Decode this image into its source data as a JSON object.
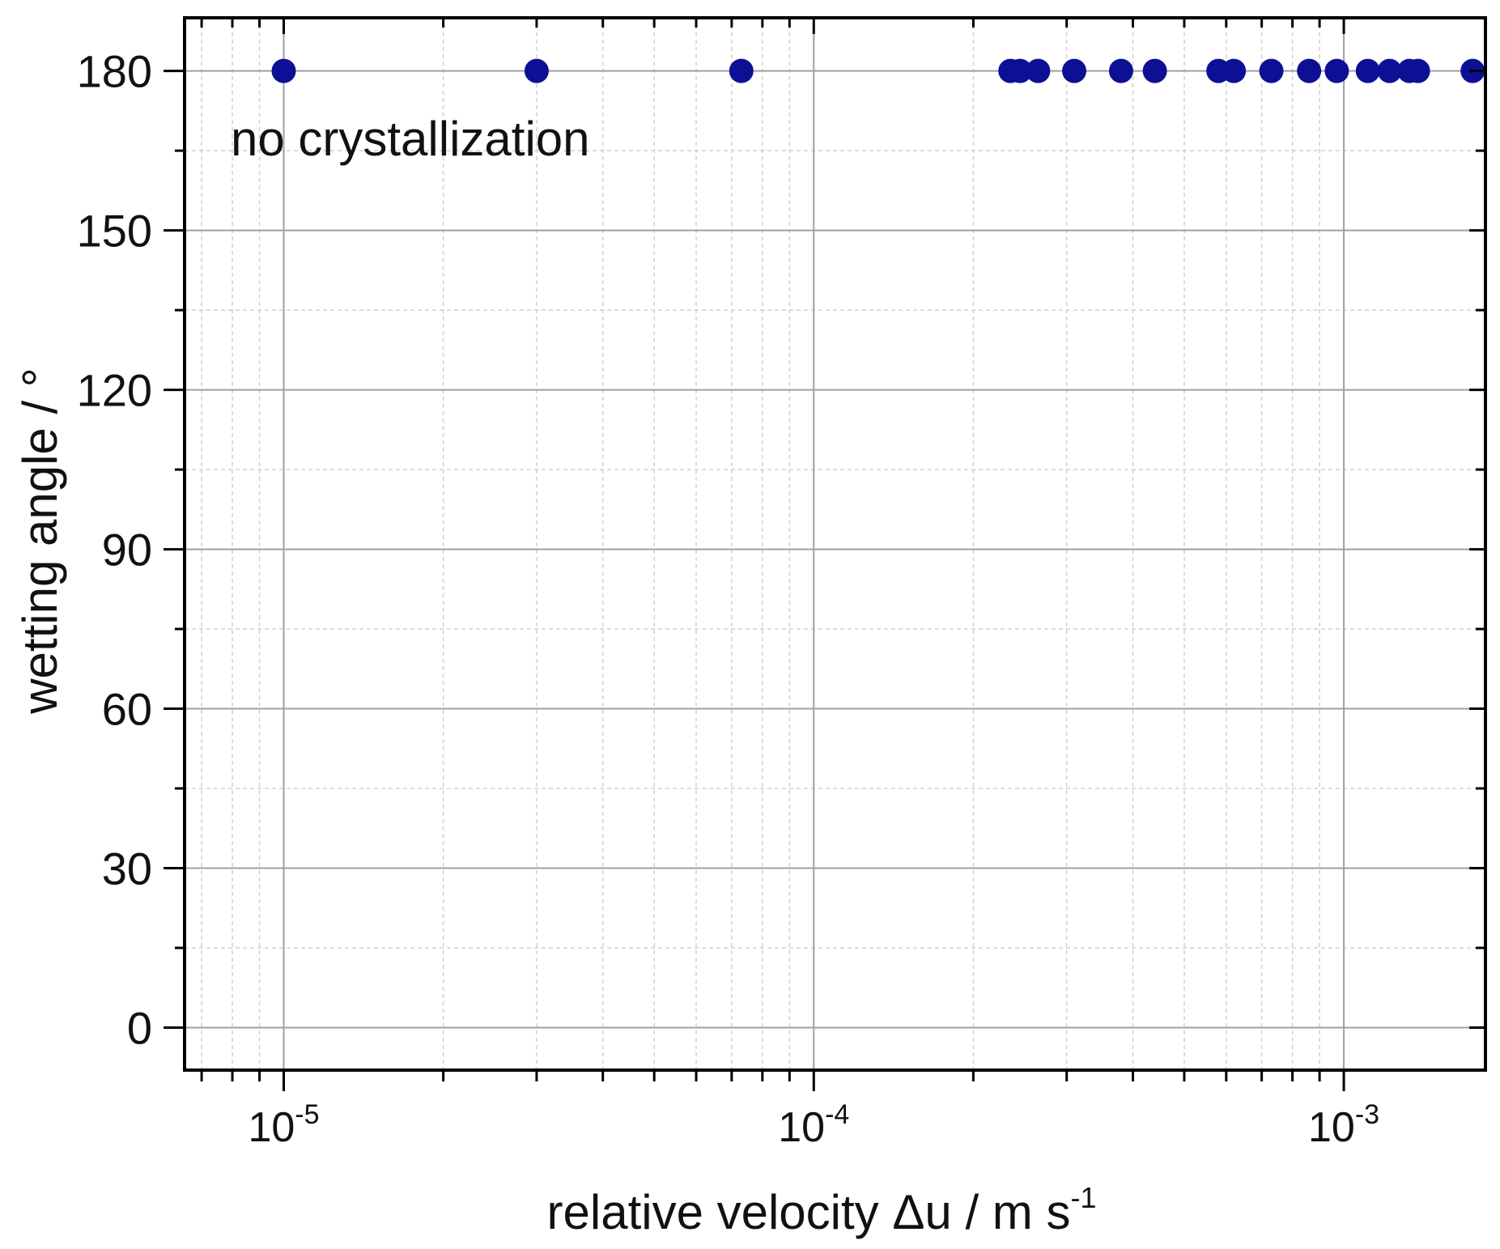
{
  "chart_data": {
    "type": "scatter",
    "xlabel": "relative velocity Δu  /  m s",
    "xlabel_sup": "-1",
    "ylabel": "wetting angle  /  °",
    "annotation": "no crystallization",
    "x_scale": "log",
    "xlim": [
      6.5e-06,
      0.00185
    ],
    "ylim": [
      -8,
      190
    ],
    "x_ticks": [
      {
        "value": 1e-05,
        "base": "10",
        "exp": "-5"
      },
      {
        "value": 0.0001,
        "base": "10",
        "exp": "-4"
      },
      {
        "value": 0.001,
        "base": "10",
        "exp": "-3"
      }
    ],
    "y_ticks": [
      0,
      30,
      60,
      90,
      120,
      150,
      180
    ],
    "y_tick_labels": [
      "0",
      "30",
      "60",
      "90",
      "120",
      "150",
      "180"
    ],
    "grid": true,
    "legend": "none",
    "colors": {
      "marker": "#0d0f94",
      "major_grid": "#a0a0a0",
      "minor_grid": "#d0d0d0",
      "axis": "#000000"
    },
    "series": [
      {
        "x": [
          1e-05,
          3e-05,
          7.3e-05,
          0.000235,
          0.000245,
          0.000265,
          0.00031,
          0.00038,
          0.00044,
          0.00058,
          0.00062,
          0.00073,
          0.00086,
          0.00097,
          0.00111,
          0.00122,
          0.00133,
          0.00138,
          0.00175
        ],
        "y": [
          180,
          180,
          180,
          180,
          180,
          180,
          180,
          180,
          180,
          180,
          180,
          180,
          180,
          180,
          180,
          180,
          180,
          180,
          180
        ]
      }
    ]
  }
}
